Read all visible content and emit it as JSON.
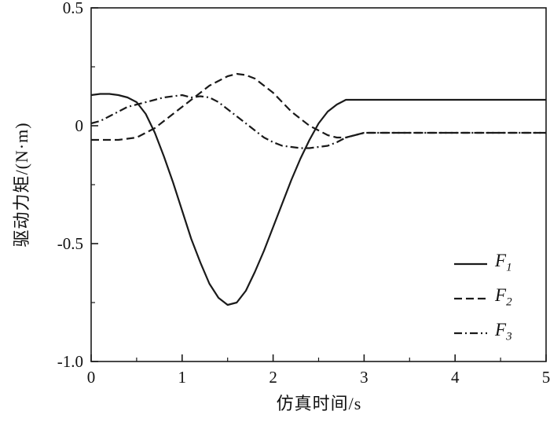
{
  "figure": {
    "background": "#ffffff",
    "ink_color": "#1a1a1a"
  },
  "chart_data": {
    "type": "line",
    "title": "",
    "xlabel": "仿真时间/s",
    "ylabel": "驱动力矩/(N·m)",
    "xlim": [
      0,
      5
    ],
    "ylim": [
      -1.0,
      0.5
    ],
    "grid": false,
    "legend_position": "lower right",
    "xticks": {
      "values": [
        0,
        1,
        2,
        3,
        4,
        5
      ],
      "labels": [
        "0",
        "1",
        "2",
        "3",
        "4",
        "5"
      ]
    },
    "yticks": {
      "values": [
        0.5,
        0,
        -0.5,
        -1.0
      ],
      "labels": [
        "0.5",
        "0",
        "-0.5",
        "-1.0"
      ]
    },
    "minor_xtick_step": 0.5,
    "minor_ytick_step": 0.25,
    "x": [
      0,
      0.1,
      0.2,
      0.3,
      0.4,
      0.5,
      0.6,
      0.7,
      0.8,
      0.9,
      1.0,
      1.1,
      1.2,
      1.3,
      1.4,
      1.5,
      1.6,
      1.7,
      1.8,
      1.9,
      2.0,
      2.1,
      2.2,
      2.3,
      2.4,
      2.5,
      2.6,
      2.7,
      2.8,
      2.9,
      3.0,
      3.5,
      4.0,
      4.5,
      5.0
    ],
    "series": [
      {
        "name": "F1",
        "label": "F",
        "sub": "1",
        "style": "solid",
        "y": [
          0.13,
          0.135,
          0.135,
          0.13,
          0.12,
          0.1,
          0.05,
          -0.03,
          -0.13,
          -0.24,
          -0.36,
          -0.48,
          -0.58,
          -0.67,
          -0.73,
          -0.76,
          -0.75,
          -0.7,
          -0.62,
          -0.53,
          -0.43,
          -0.33,
          -0.23,
          -0.14,
          -0.06,
          0.01,
          0.06,
          0.09,
          0.11,
          0.11,
          0.11,
          0.11,
          0.11,
          0.11,
          0.11
        ]
      },
      {
        "name": "F2",
        "label": "F",
        "sub": "2",
        "style": "dashed",
        "y": [
          -0.06,
          -0.06,
          -0.06,
          -0.06,
          -0.055,
          -0.05,
          -0.03,
          -0.01,
          0.02,
          0.05,
          0.08,
          0.11,
          0.14,
          0.17,
          0.19,
          0.21,
          0.22,
          0.215,
          0.2,
          0.17,
          0.14,
          0.1,
          0.06,
          0.03,
          0.0,
          -0.02,
          -0.04,
          -0.05,
          -0.05,
          -0.04,
          -0.03,
          -0.03,
          -0.03,
          -0.03,
          -0.03
        ]
      },
      {
        "name": "F3",
        "label": "F",
        "sub": "3",
        "style": "dashdot",
        "y": [
          0.01,
          0.02,
          0.04,
          0.06,
          0.08,
          0.09,
          0.1,
          0.11,
          0.12,
          0.125,
          0.13,
          0.12,
          0.125,
          0.12,
          0.1,
          0.07,
          0.04,
          0.01,
          -0.02,
          -0.05,
          -0.07,
          -0.085,
          -0.09,
          -0.095,
          -0.095,
          -0.09,
          -0.085,
          -0.07,
          -0.05,
          -0.04,
          -0.03,
          -0.03,
          -0.03,
          -0.03,
          -0.03
        ]
      }
    ]
  }
}
